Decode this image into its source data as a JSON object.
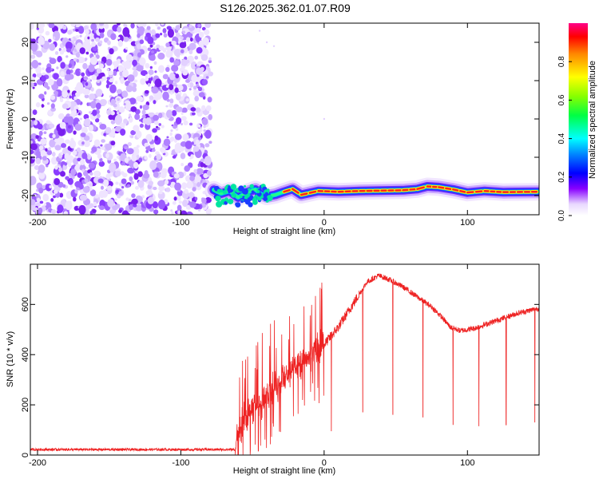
{
  "title": "S126.2025.362.01.07.R09",
  "chart_data": [
    {
      "type": "heatmap",
      "xlabel": "Height of straight line (km)",
      "ylabel": "Frequency (Hz)",
      "xlim": [
        -205,
        150
      ],
      "ylim": [
        -25,
        25
      ],
      "xticks": [
        -200,
        -100,
        0,
        100
      ],
      "yticks": [
        -20,
        -10,
        0,
        10,
        20
      ],
      "noise_region_x": [
        -205,
        -77
      ],
      "carrier_trace": [
        [
          -77,
          -18.5
        ],
        [
          -72,
          -19.5
        ],
        [
          -66,
          -18.8
        ],
        [
          -60,
          -20.5
        ],
        [
          -54,
          -19.2
        ],
        [
          -48,
          -18.4
        ],
        [
          -44,
          -19.6
        ],
        [
          -40,
          -20.2
        ],
        [
          -34,
          -19.8
        ],
        [
          -28,
          -19.0
        ],
        [
          -22,
          -18.3
        ],
        [
          -16,
          -19.8
        ],
        [
          -10,
          -19.3
        ],
        [
          -4,
          -18.8
        ],
        [
          10,
          -19.0
        ],
        [
          25,
          -18.8
        ],
        [
          40,
          -18.7
        ],
        [
          55,
          -18.6
        ],
        [
          65,
          -18.3
        ],
        [
          72,
          -17.6
        ],
        [
          80,
          -17.8
        ],
        [
          90,
          -18.4
        ],
        [
          100,
          -19.2
        ],
        [
          112,
          -18.8
        ],
        [
          125,
          -19.1
        ],
        [
          150,
          -19.0
        ]
      ],
      "colorbar": {
        "label": "Normalized spectral amplitude",
        "ticks": [
          0.0,
          0.2,
          0.4,
          0.6,
          0.8
        ],
        "tick_labels": [
          "0.0",
          "0.2",
          "0.4",
          "0.6",
          "0.8"
        ],
        "range": [
          0,
          1
        ]
      }
    },
    {
      "type": "line",
      "xlabel": "Height of straight line (km)",
      "ylabel": "SNR (10 * v/v)",
      "xlim": [
        -205,
        150
      ],
      "ylim": [
        0,
        760
      ],
      "xticks": [
        -200,
        -100,
        0,
        100
      ],
      "yticks": [
        0,
        200,
        400,
        600
      ],
      "series": [
        {
          "name": "SNR",
          "color": "#ee2222",
          "baseline": [
            [
              -205,
              22
            ],
            [
              -62,
              22
            ],
            [
              -60,
              80
            ],
            [
              -55,
              150
            ],
            [
              -50,
              190
            ],
            [
              -45,
              210
            ],
            [
              -40,
              240
            ],
            [
              -30,
              300
            ],
            [
              -20,
              360
            ],
            [
              -10,
              400
            ],
            [
              0,
              440
            ],
            [
              10,
              510
            ],
            [
              20,
              600
            ],
            [
              30,
              690
            ],
            [
              38,
              715
            ],
            [
              45,
              700
            ],
            [
              55,
              670
            ],
            [
              65,
              630
            ],
            [
              75,
              590
            ],
            [
              82,
              550
            ],
            [
              88,
              510
            ],
            [
              95,
              495
            ],
            [
              105,
              505
            ],
            [
              115,
              525
            ],
            [
              125,
              545
            ],
            [
              135,
              565
            ],
            [
              150,
              585
            ]
          ],
          "dropouts": [
            [
              5,
              95
            ],
            [
              27,
              170
            ],
            [
              48,
              160
            ],
            [
              69,
              150
            ],
            [
              90,
              120
            ],
            [
              108,
              115
            ],
            [
              127,
              120
            ],
            [
              147,
              130
            ]
          ]
        }
      ]
    }
  ]
}
